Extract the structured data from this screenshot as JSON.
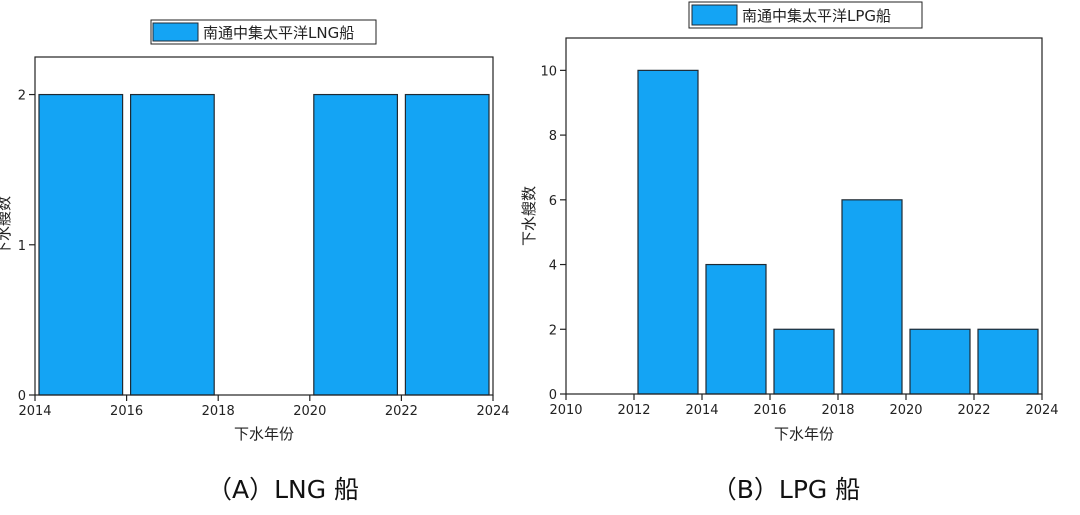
{
  "colors": {
    "bar": "#14a4f4",
    "bar_stroke": "#1f2a33",
    "axis": "#222222",
    "text": "#222222",
    "caption": "#111111"
  },
  "chart_data": [
    {
      "type": "bar",
      "legend": "南通中集太平洋LNG船",
      "legend_placement": "top-center",
      "xlabel": "下水年份",
      "ylabel": "下水艘数",
      "xlim": [
        2014,
        2024
      ],
      "ylim": [
        0,
        2.25
      ],
      "xticks": [
        2014,
        2016,
        2018,
        2020,
        2022,
        2024
      ],
      "yticks": [
        0,
        1,
        2
      ],
      "bins": [
        {
          "x0": 2014,
          "x1": 2016,
          "value": 2
        },
        {
          "x0": 2016,
          "x1": 2018,
          "value": 2
        },
        {
          "x0": 2018,
          "x1": 2020,
          "value": 0
        },
        {
          "x0": 2020,
          "x1": 2022,
          "value": 2
        },
        {
          "x0": 2022,
          "x1": 2024,
          "value": 2
        }
      ],
      "grid": false,
      "caption": "（A）LNG 船"
    },
    {
      "type": "bar",
      "legend": "南通中集太平洋LPG船",
      "legend_placement": "top-center",
      "xlabel": "下水年份",
      "ylabel": "下水艘数",
      "xlim": [
        2010,
        2024
      ],
      "ylim": [
        0,
        11
      ],
      "xticks": [
        2010,
        2012,
        2014,
        2016,
        2018,
        2020,
        2022,
        2024
      ],
      "yticks": [
        0,
        2,
        4,
        6,
        8,
        10
      ],
      "bins": [
        {
          "x0": 2010,
          "x1": 2012,
          "value": 0
        },
        {
          "x0": 2012,
          "x1": 2014,
          "value": 10
        },
        {
          "x0": 2014,
          "x1": 2016,
          "value": 4
        },
        {
          "x0": 2016,
          "x1": 2018,
          "value": 2
        },
        {
          "x0": 2018,
          "x1": 2020,
          "value": 6
        },
        {
          "x0": 2020,
          "x1": 2022,
          "value": 2
        },
        {
          "x0": 2022,
          "x1": 2024,
          "value": 2
        }
      ],
      "grid": false,
      "caption": "（B）LPG 船"
    }
  ]
}
